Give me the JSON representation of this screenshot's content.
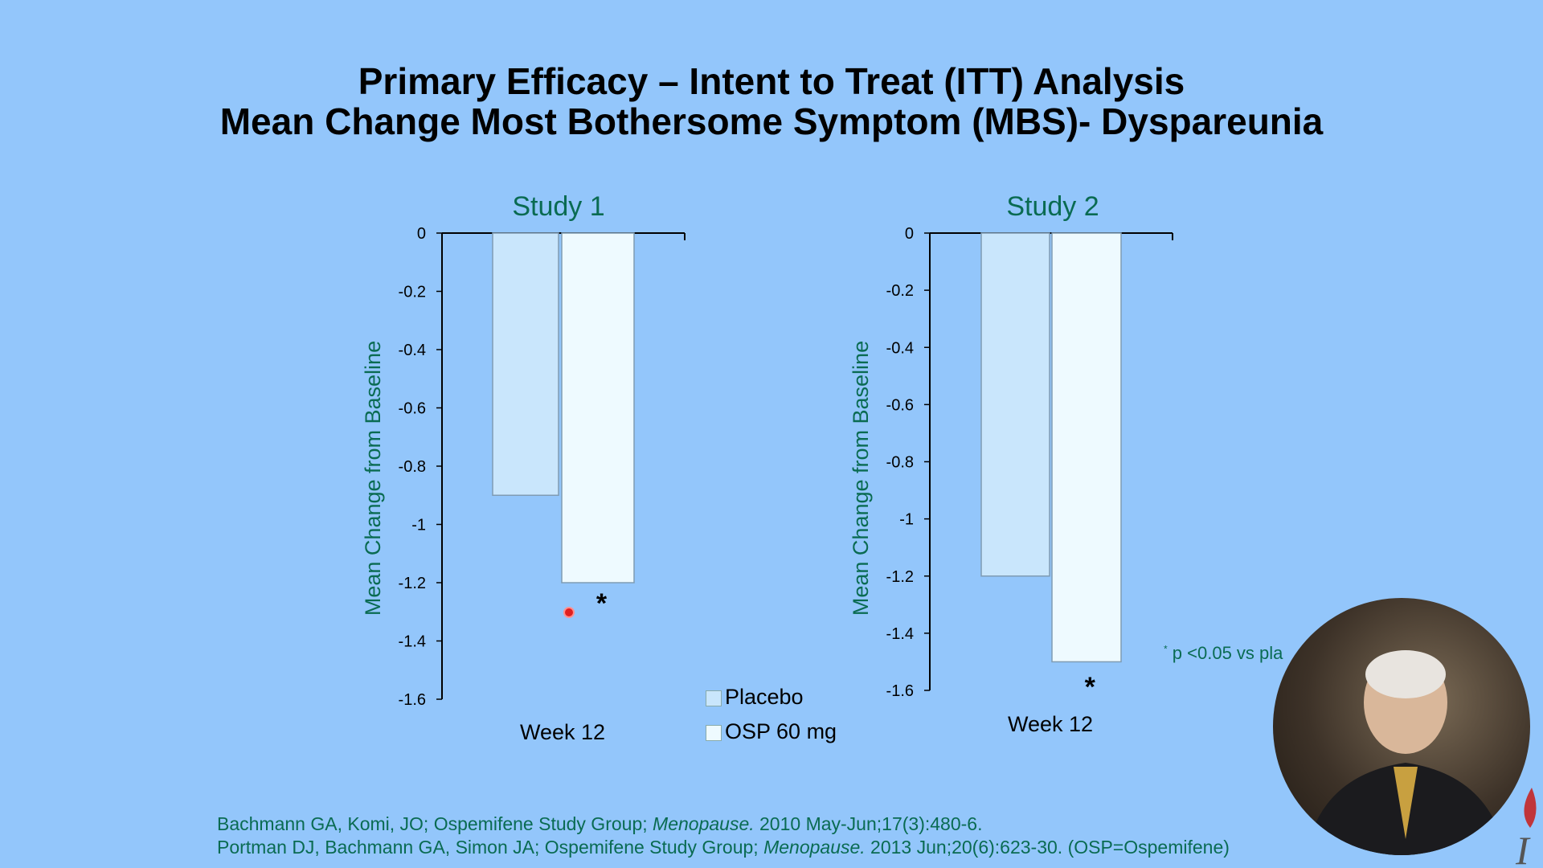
{
  "slide": {
    "title_line1": "Primary Efficacy – Intent to Treat (ITT) Analysis",
    "title_line2": "Mean Change Most Bothersome Symptom (MBS)- Dyspareunia",
    "footnote_marker": "*",
    "footnote_text": " p <0.05 vs pla",
    "ref1_part1": "Bachmann GA, Komi, JO; Ospemifene Study Group; ",
    "ref1_journal": "Menopause.",
    "ref1_part2": " 2010 May-Jun;17(3):480-6.",
    "ref2_part1": "Portman DJ, Bachmann GA, Simon JA; Ospemifene Study Group; ",
    "ref2_journal": "Menopause.",
    "ref2_part2": " 2013 Jun;20(6):623-30.   (OSP=Ospemifene)"
  },
  "legend": [
    {
      "label": "Placebo",
      "color": "#c9e6fc"
    },
    {
      "label": "OSP 60 mg",
      "color": "#eefaff"
    }
  ],
  "chart_data": [
    {
      "type": "bar",
      "title": "Study 1",
      "categories": [
        "Week 12"
      ],
      "ylabel": "Mean Change from Baseline",
      "ylim": [
        -1.6,
        0
      ],
      "yticks": [
        "0",
        "-0.2",
        "-0.4",
        "-0.6",
        "-0.8",
        "-1",
        "-1.2",
        "-1.4",
        "-1.6"
      ],
      "series": [
        {
          "name": "Placebo",
          "values": [
            -0.9
          ]
        },
        {
          "name": "OSP 60 mg",
          "values": [
            -1.2
          ]
        }
      ],
      "annotations": [
        "*"
      ]
    },
    {
      "type": "bar",
      "title": "Study 2",
      "categories": [
        "Week 12"
      ],
      "ylabel": "Mean Change from Baseline",
      "ylim": [
        -1.6,
        0
      ],
      "yticks": [
        "0",
        "-0.2",
        "-0.4",
        "-0.6",
        "-0.8",
        "-1",
        "-1.2",
        "-1.4",
        "-1.6"
      ],
      "series": [
        {
          "name": "Placebo",
          "values": [
            -1.2
          ]
        },
        {
          "name": "OSP 60 mg",
          "values": [
            -1.5
          ]
        }
      ],
      "annotations": [
        "*"
      ]
    }
  ]
}
